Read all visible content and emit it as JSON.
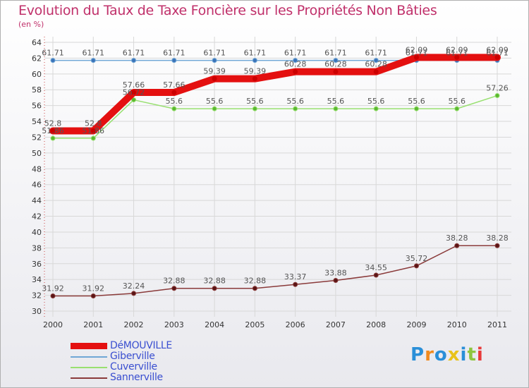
{
  "title": "Evolution du Taux de Taxe Foncière sur les Propriétés Non Bâties",
  "unit": "(en %)",
  "logo_text": "Proxiti",
  "colors": {
    "title": "#c0306a",
    "grid": "#d8d8d8",
    "legend_text": "#3a4fd0"
  },
  "chart_data": {
    "type": "line",
    "title": "Evolution du Taux de Taxe Foncière sur les Propriétés Non Bâties",
    "ylabel": "(en %)",
    "xlabel": "",
    "ylim": [
      30,
      64
    ],
    "yticks": [
      30,
      32,
      34,
      36,
      38,
      40,
      42,
      44,
      46,
      48,
      50,
      52,
      54,
      56,
      58,
      60,
      62,
      64
    ],
    "categories": [
      "2000",
      "2001",
      "2002",
      "2003",
      "2004",
      "2005",
      "2006",
      "2007",
      "2008",
      "2009",
      "2010",
      "2011"
    ],
    "grid": true,
    "legend_position": "bottom-left",
    "series": [
      {
        "name": "DéMOUVILLE",
        "color": "#e41010",
        "marker": "#cc0000",
        "values": [
          52.8,
          52.8,
          57.66,
          57.66,
          59.39,
          59.39,
          60.28,
          60.28,
          60.28,
          62.09,
          62.09,
          62.09
        ],
        "labels": [
          "52.8",
          "52.8",
          "57.66",
          "57.66",
          "59.39",
          "59.39",
          "60.28",
          "60.28",
          "60.28",
          "62.09",
          "62.09",
          "62.09"
        ]
      },
      {
        "name": "Giberville",
        "color": "#6fa7d6",
        "marker": "#3b73b9",
        "values": [
          61.71,
          61.71,
          61.71,
          61.71,
          61.71,
          61.71,
          61.71,
          61.71,
          61.71,
          61.71,
          61.71,
          61.71
        ],
        "labels": [
          "61.71",
          "61.71",
          "61.71",
          "61.71",
          "61.71",
          "61.71",
          "61.71",
          "61.71",
          "61.71",
          "61.71",
          "61.71",
          "61.71"
        ]
      },
      {
        "name": "Cuverville",
        "color": "#98e070",
        "marker": "#5ab830",
        "values": [
          51.86,
          51.86,
          56.72,
          55.6,
          55.6,
          55.6,
          55.6,
          55.6,
          55.6,
          55.6,
          55.6,
          57.26
        ],
        "labels": [
          "51.86",
          "51.86",
          "56.72",
          "55.6",
          "55.6",
          "55.6",
          "55.6",
          "55.6",
          "55.6",
          "55.6",
          "55.6",
          "57.26"
        ]
      },
      {
        "name": "Sannerville",
        "color": "#8a3a3a",
        "marker": "#5a1515",
        "values": [
          31.92,
          31.92,
          32.24,
          32.88,
          32.88,
          32.88,
          33.37,
          33.88,
          34.55,
          35.72,
          38.28,
          38.28
        ],
        "labels": [
          "31.92",
          "31.92",
          "32.24",
          "32.88",
          "32.88",
          "32.88",
          "33.37",
          "33.88",
          "34.55",
          "35.72",
          "38.28",
          "38.28"
        ]
      }
    ]
  }
}
